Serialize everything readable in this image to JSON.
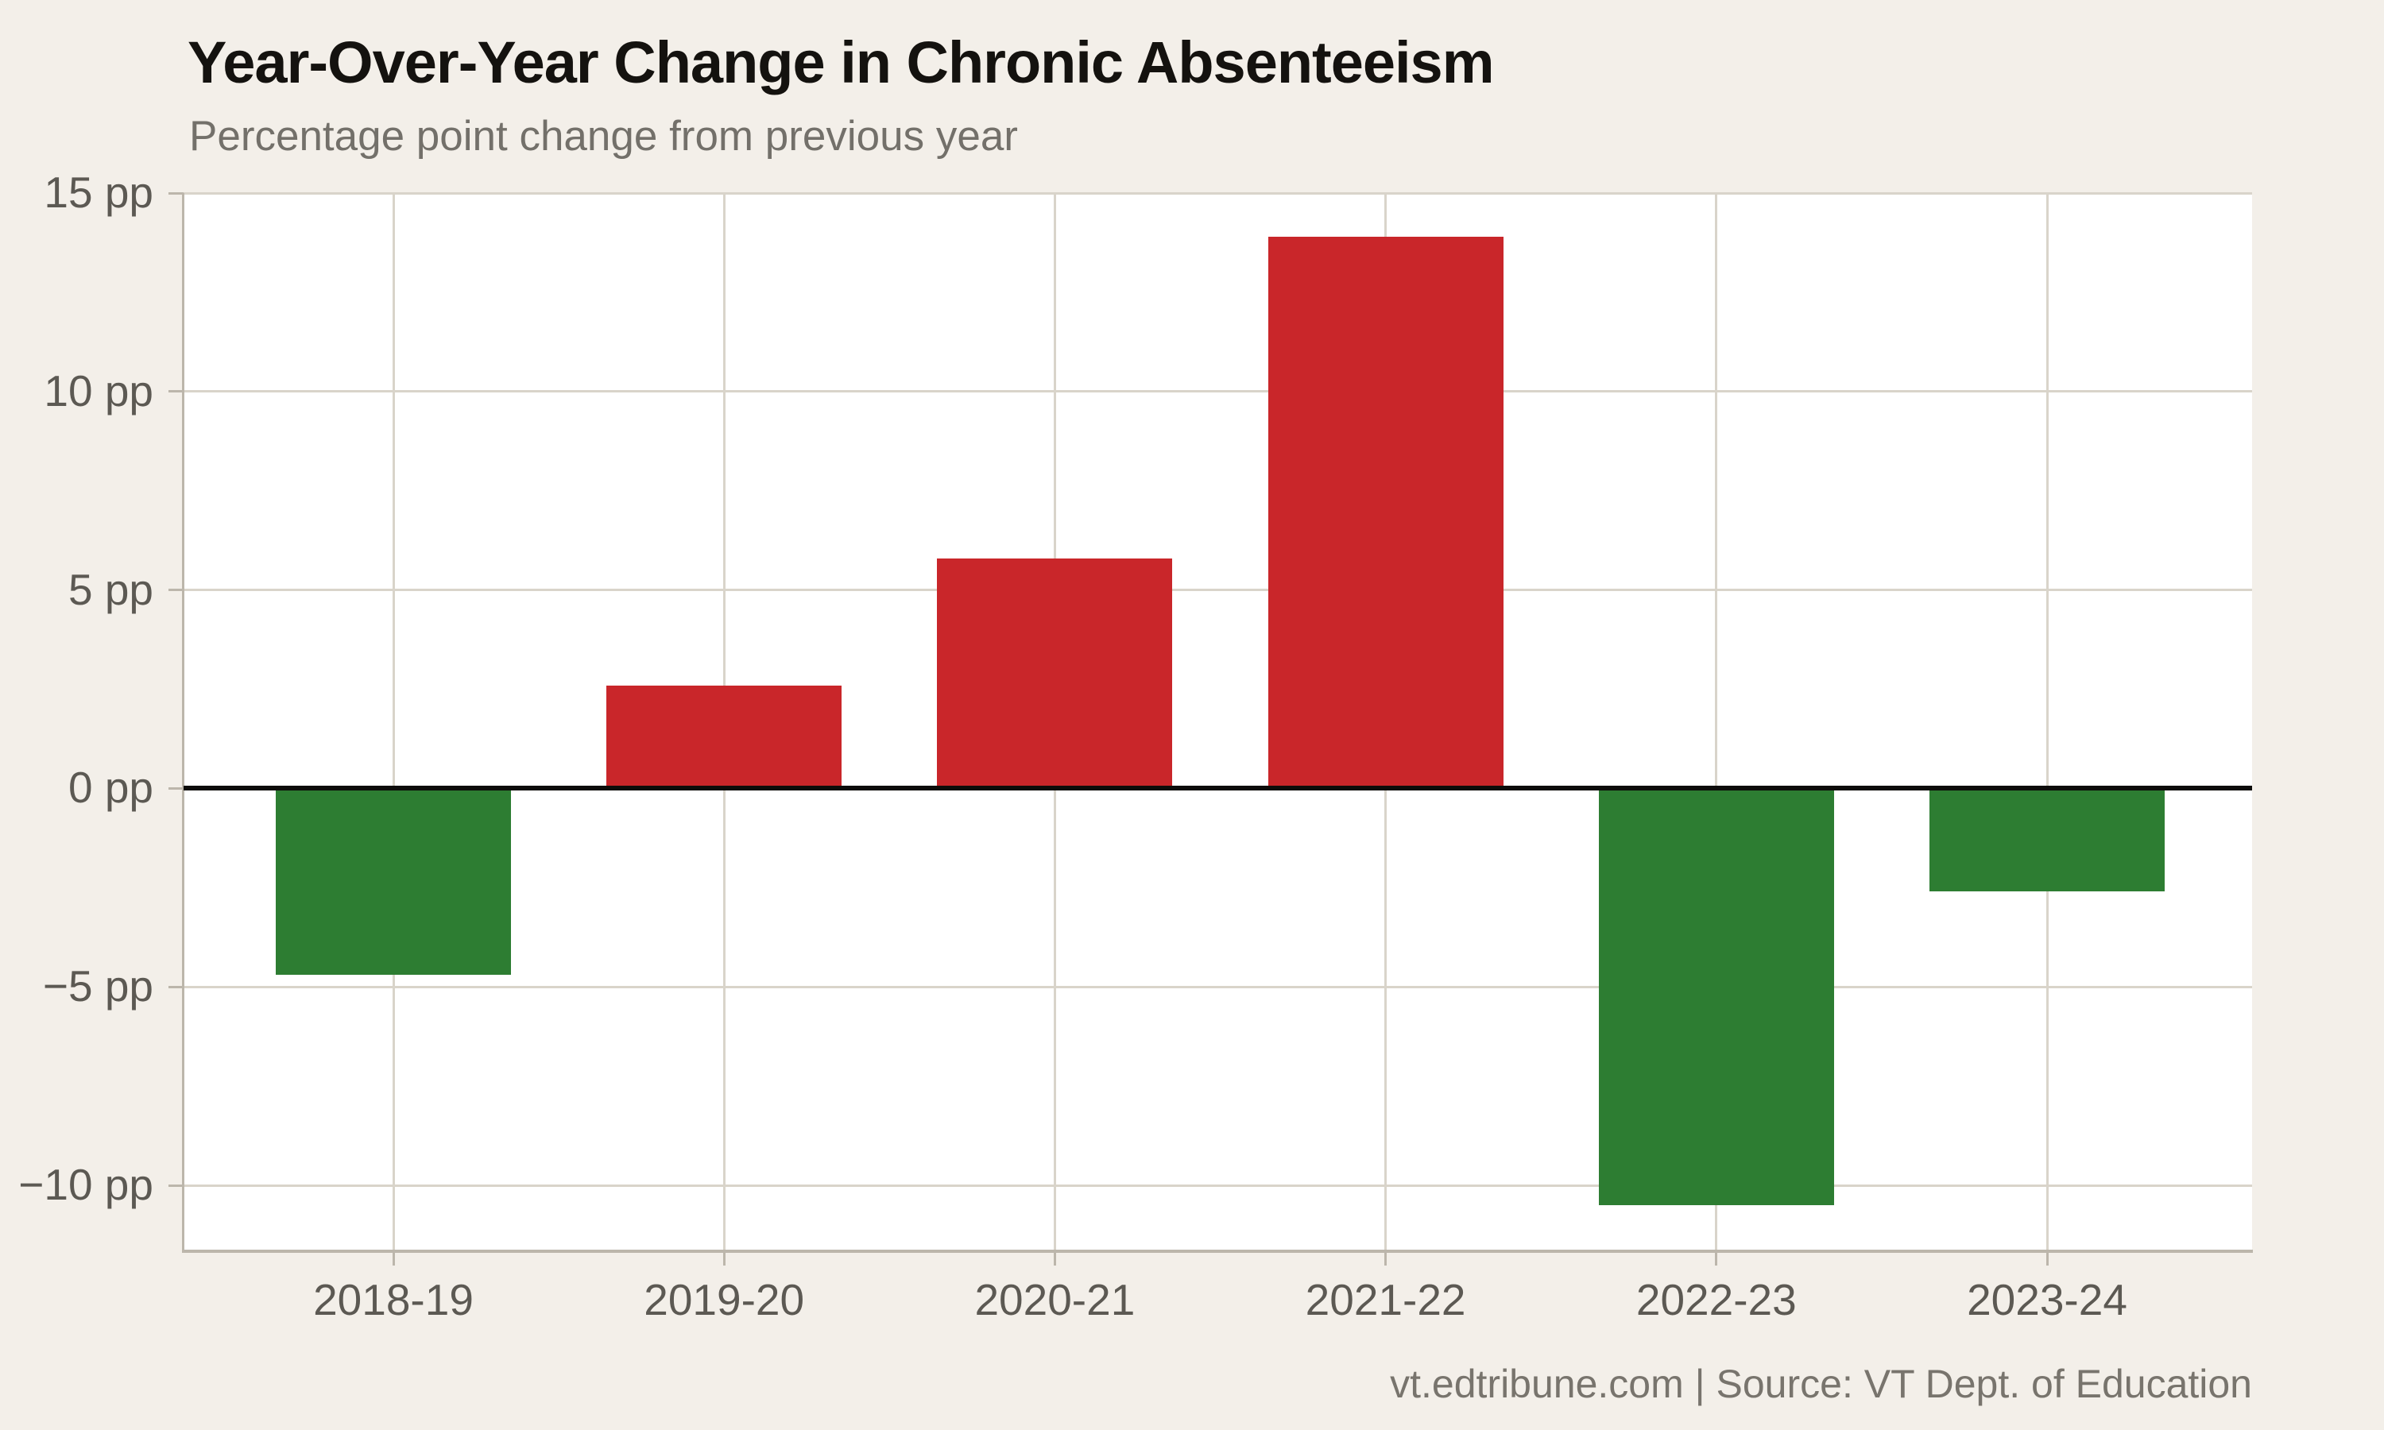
{
  "title": "Year-Over-Year Change in Chronic Absenteeism",
  "subtitle": "Percentage point change from previous year",
  "footer": "vt.edtribune.com | Source: VT Dept. of Education",
  "colors": {
    "page_background": "#f3efe9",
    "plot_background": "#ffffff",
    "gridline": "#d9d4ca",
    "spine": "#bcb6ab",
    "zero_line": "#0d0c0a",
    "title_text": "#14120f",
    "subtitle_text": "#73706a",
    "tick_text": "#5c5953",
    "footer_text": "#78746d",
    "increase_bar": "#c9262a",
    "decrease_bar": "#2d7d32"
  },
  "chart_data": {
    "type": "bar",
    "title": "Year-Over-Year Change in Chronic Absenteeism",
    "subtitle": "Percentage point change from previous year",
    "categories": [
      "2018-19",
      "2019-20",
      "2020-21",
      "2021-22",
      "2022-23",
      "2023-24"
    ],
    "values": [
      -4.7,
      2.6,
      5.8,
      13.9,
      -10.5,
      -2.6
    ],
    "unit": "pp",
    "positive_color": "#c9262a",
    "negative_color": "#2d7d32",
    "y_ticks": [
      15,
      10,
      5,
      0,
      -5,
      -10
    ],
    "y_tick_labels": [
      "15 pp",
      "10 pp",
      "5 pp",
      "0 pp",
      "−5 pp",
      "−10 pp"
    ],
    "ylim": [
      -11.66,
      15
    ],
    "grid": true,
    "zero_line": true,
    "legend": "none",
    "source": "vt.edtribune.com | Source: VT Dept. of Education"
  }
}
